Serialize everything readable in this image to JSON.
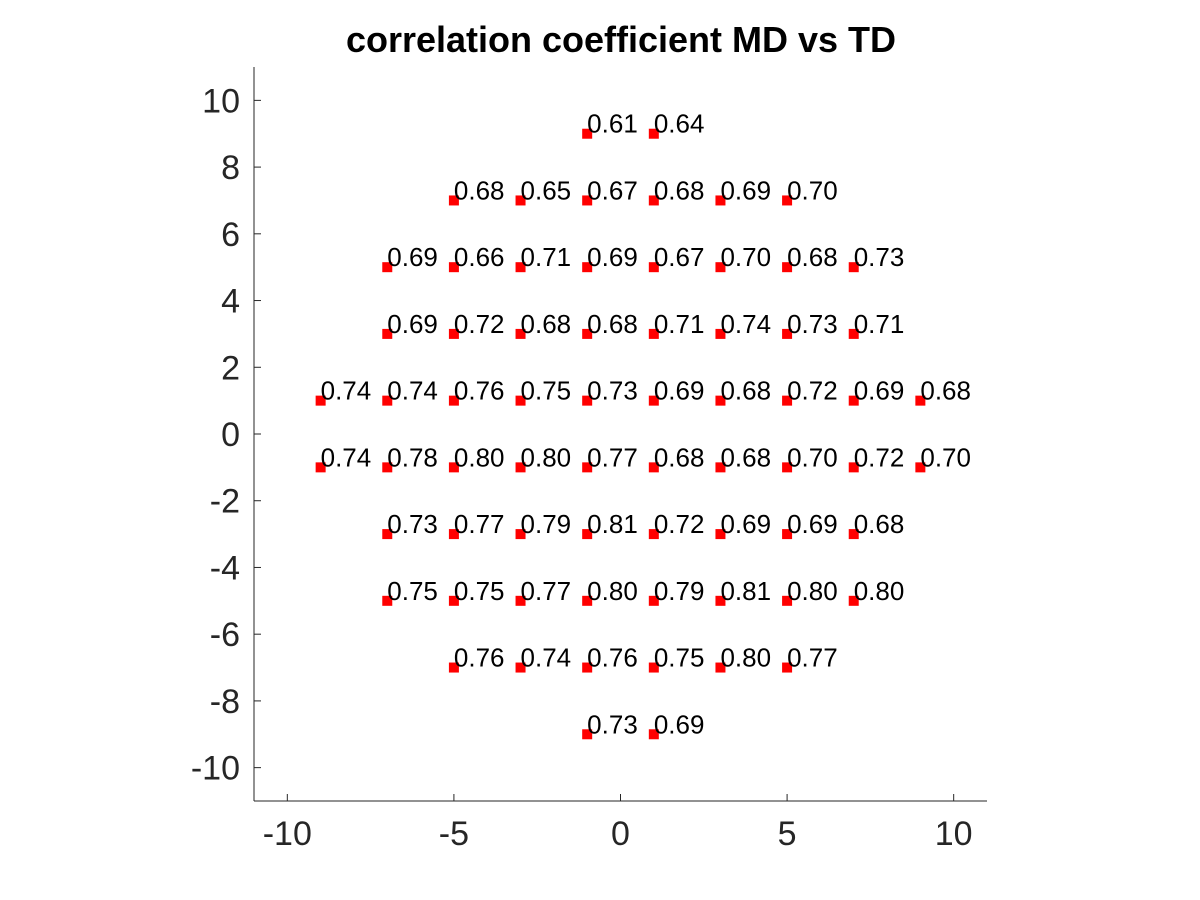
{
  "chart_data": {
    "type": "scatter",
    "title": "correlation coefficient MD vs TD",
    "xlabel": "",
    "ylabel": "",
    "xlim": [
      -11,
      11
    ],
    "ylim": [
      -11,
      11
    ],
    "xticks": [
      -10,
      -5,
      0,
      5,
      10
    ],
    "yticks": [
      -10,
      -8,
      -6,
      -4,
      -2,
      0,
      2,
      4,
      6,
      8,
      10
    ],
    "grid": false,
    "marker_color": "#ff0000",
    "marker": "square",
    "points": [
      {
        "x": -1,
        "y": 9,
        "label": "0.61"
      },
      {
        "x": 1,
        "y": 9,
        "label": "0.64"
      },
      {
        "x": -5,
        "y": 7,
        "label": "0.68"
      },
      {
        "x": -3,
        "y": 7,
        "label": "0.65"
      },
      {
        "x": -1,
        "y": 7,
        "label": "0.67"
      },
      {
        "x": 1,
        "y": 7,
        "label": "0.68"
      },
      {
        "x": 3,
        "y": 7,
        "label": "0.69"
      },
      {
        "x": 5,
        "y": 7,
        "label": "0.70"
      },
      {
        "x": -7,
        "y": 5,
        "label": "0.69"
      },
      {
        "x": -5,
        "y": 5,
        "label": "0.66"
      },
      {
        "x": -3,
        "y": 5,
        "label": "0.71"
      },
      {
        "x": -1,
        "y": 5,
        "label": "0.69"
      },
      {
        "x": 1,
        "y": 5,
        "label": "0.67"
      },
      {
        "x": 3,
        "y": 5,
        "label": "0.70"
      },
      {
        "x": 5,
        "y": 5,
        "label": "0.68"
      },
      {
        "x": 7,
        "y": 5,
        "label": "0.73"
      },
      {
        "x": -7,
        "y": 3,
        "label": "0.69"
      },
      {
        "x": -5,
        "y": 3,
        "label": "0.72"
      },
      {
        "x": -3,
        "y": 3,
        "label": "0.68"
      },
      {
        "x": -1,
        "y": 3,
        "label": "0.68"
      },
      {
        "x": 1,
        "y": 3,
        "label": "0.71"
      },
      {
        "x": 3,
        "y": 3,
        "label": "0.74"
      },
      {
        "x": 5,
        "y": 3,
        "label": "0.73"
      },
      {
        "x": 7,
        "y": 3,
        "label": "0.71"
      },
      {
        "x": -9,
        "y": 1,
        "label": "0.74"
      },
      {
        "x": -7,
        "y": 1,
        "label": "0.74"
      },
      {
        "x": -5,
        "y": 1,
        "label": "0.76"
      },
      {
        "x": -3,
        "y": 1,
        "label": "0.75"
      },
      {
        "x": -1,
        "y": 1,
        "label": "0.73"
      },
      {
        "x": 1,
        "y": 1,
        "label": "0.69"
      },
      {
        "x": 3,
        "y": 1,
        "label": "0.68"
      },
      {
        "x": 5,
        "y": 1,
        "label": "0.72"
      },
      {
        "x": 7,
        "y": 1,
        "label": "0.69"
      },
      {
        "x": 9,
        "y": 1,
        "label": "0.68"
      },
      {
        "x": -9,
        "y": -1,
        "label": "0.74"
      },
      {
        "x": -7,
        "y": -1,
        "label": "0.78"
      },
      {
        "x": -5,
        "y": -1,
        "label": "0.80"
      },
      {
        "x": -3,
        "y": -1,
        "label": "0.80"
      },
      {
        "x": -1,
        "y": -1,
        "label": "0.77"
      },
      {
        "x": 1,
        "y": -1,
        "label": "0.68"
      },
      {
        "x": 3,
        "y": -1,
        "label": "0.68"
      },
      {
        "x": 5,
        "y": -1,
        "label": "0.70"
      },
      {
        "x": 7,
        "y": -1,
        "label": "0.72"
      },
      {
        "x": 9,
        "y": -1,
        "label": "0.70"
      },
      {
        "x": -7,
        "y": -3,
        "label": "0.73"
      },
      {
        "x": -5,
        "y": -3,
        "label": "0.77"
      },
      {
        "x": -3,
        "y": -3,
        "label": "0.79"
      },
      {
        "x": -1,
        "y": -3,
        "label": "0.81"
      },
      {
        "x": 1,
        "y": -3,
        "label": "0.72"
      },
      {
        "x": 3,
        "y": -3,
        "label": "0.69"
      },
      {
        "x": 5,
        "y": -3,
        "label": "0.69"
      },
      {
        "x": 7,
        "y": -3,
        "label": "0.68"
      },
      {
        "x": -7,
        "y": -5,
        "label": "0.75"
      },
      {
        "x": -5,
        "y": -5,
        "label": "0.75"
      },
      {
        "x": -3,
        "y": -5,
        "label": "0.77"
      },
      {
        "x": -1,
        "y": -5,
        "label": "0.80"
      },
      {
        "x": 1,
        "y": -5,
        "label": "0.79"
      },
      {
        "x": 3,
        "y": -5,
        "label": "0.81"
      },
      {
        "x": 5,
        "y": -5,
        "label": "0.80"
      },
      {
        "x": 7,
        "y": -5,
        "label": "0.80"
      },
      {
        "x": -5,
        "y": -7,
        "label": "0.76"
      },
      {
        "x": -3,
        "y": -7,
        "label": "0.74"
      },
      {
        "x": -1,
        "y": -7,
        "label": "0.76"
      },
      {
        "x": 1,
        "y": -7,
        "label": "0.75"
      },
      {
        "x": 3,
        "y": -7,
        "label": "0.80"
      },
      {
        "x": 5,
        "y": -7,
        "label": "0.77"
      },
      {
        "x": -1,
        "y": -9,
        "label": "0.73"
      },
      {
        "x": 1,
        "y": -9,
        "label": "0.69"
      }
    ]
  }
}
